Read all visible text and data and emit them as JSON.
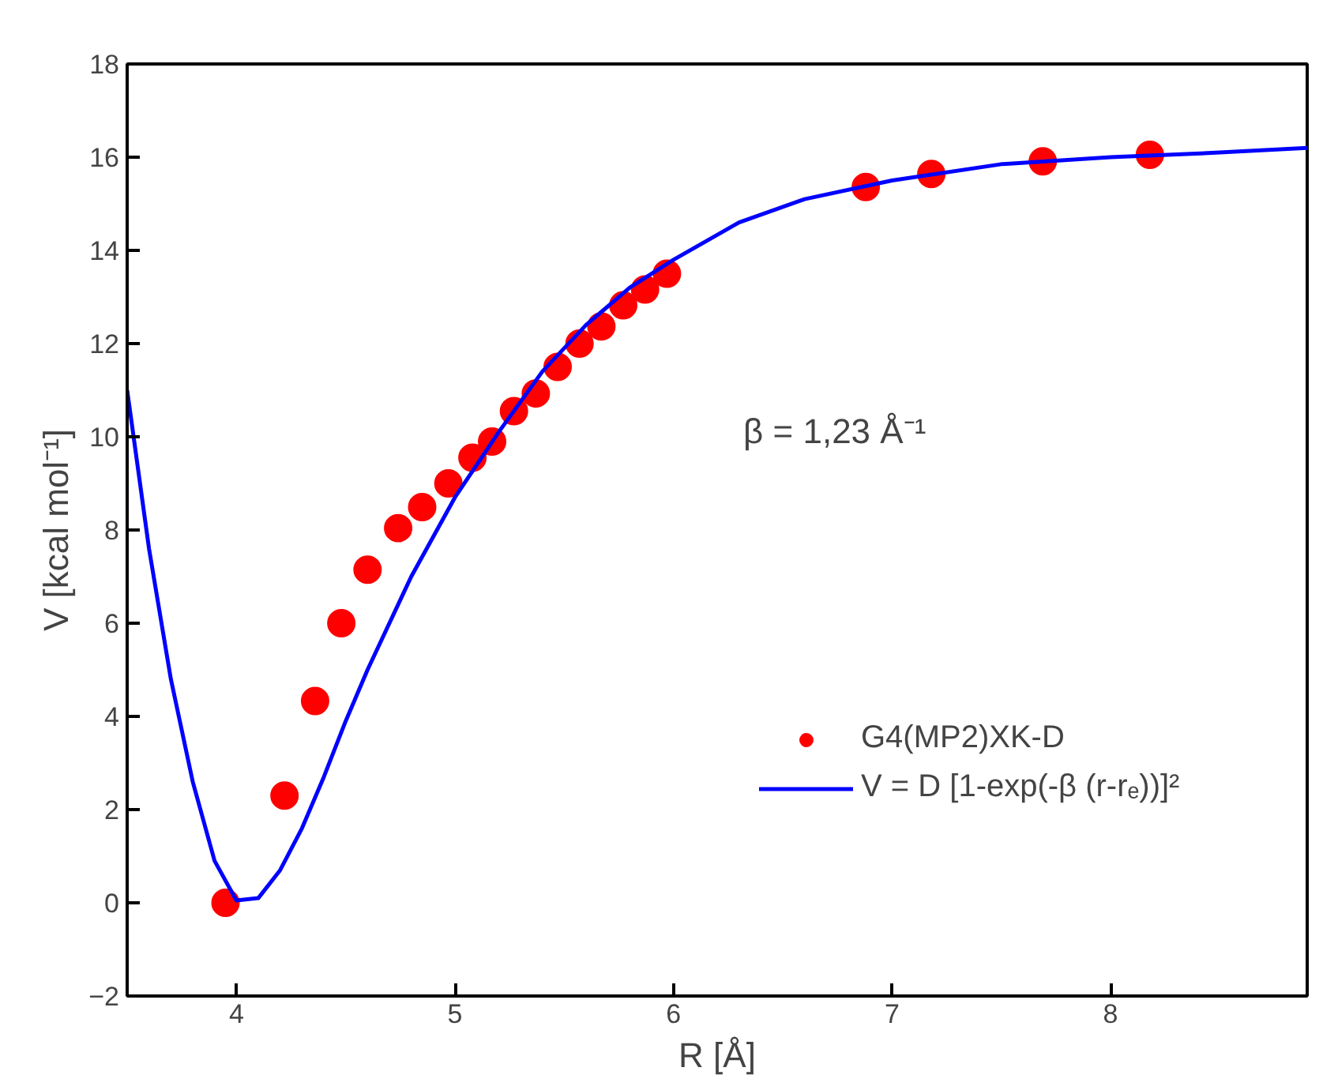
{
  "chart_data": {
    "type": "scatter",
    "xlabel": "R [Å]",
    "ylabel": "V [kcal mol⁻¹]",
    "annotations": [
      "β = 1,23 Å⁻¹"
    ],
    "xlim": [
      3.5,
      8.9
    ],
    "ylim": [
      -2,
      18
    ],
    "xticks": [
      4,
      5,
      6,
      7,
      8
    ],
    "yticks": [
      -2,
      0,
      2,
      4,
      6,
      8,
      10,
      12,
      14,
      16,
      18
    ],
    "grid": false,
    "legend": "right",
    "series": [
      {
        "name": "G4(MP2)XK-D",
        "marker": "circle",
        "color": "#ff0000",
        "x": [
          3.95,
          4.22,
          4.36,
          4.48,
          4.6,
          4.74,
          4.85,
          4.97,
          5.08,
          5.17,
          5.27,
          5.37,
          5.47,
          5.57,
          5.67,
          5.77,
          5.87,
          5.97,
          6.88,
          7.18,
          7.69,
          8.18
        ],
        "values": [
          0.0,
          2.3,
          4.33,
          6.0,
          7.15,
          8.04,
          8.49,
          9.0,
          9.55,
          9.9,
          10.55,
          10.93,
          11.5,
          12.0,
          12.37,
          12.82,
          13.16,
          13.5,
          15.36,
          15.64,
          15.91,
          16.05
        ]
      },
      {
        "name": "V = D [1-exp(-β (r-rₑ))]²",
        "type": "line",
        "color": "#0000ff",
        "line_style": "solid",
        "x": [
          3.5,
          3.6,
          3.7,
          3.8,
          3.9,
          4.0,
          4.1,
          4.2,
          4.3,
          4.4,
          4.5,
          4.6,
          4.8,
          5.0,
          5.2,
          5.4,
          5.6,
          5.8,
          6.0,
          6.3,
          6.6,
          7.0,
          7.5,
          8.0,
          8.5,
          8.9
        ],
        "values": [
          11.0,
          7.6,
          4.8,
          2.6,
          0.9,
          0.05,
          0.1,
          0.7,
          1.6,
          2.7,
          3.9,
          5.0,
          7.0,
          8.7,
          10.1,
          11.4,
          12.4,
          13.2,
          13.8,
          14.6,
          15.1,
          15.5,
          15.85,
          16.0,
          16.1,
          16.2
        ]
      }
    ]
  }
}
